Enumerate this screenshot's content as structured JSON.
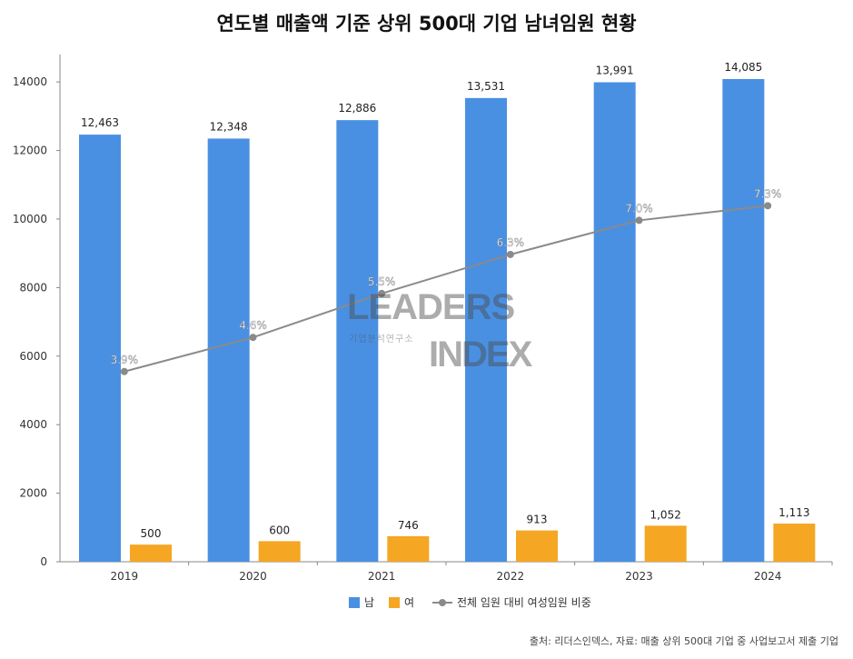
{
  "chart_data": {
    "type": "bar",
    "title": "연도별 매출액 기준 상위 500대 기업 남녀임원 현황",
    "categories": [
      "2019",
      "2020",
      "2021",
      "2022",
      "2023",
      "2024"
    ],
    "series": [
      {
        "name": "남",
        "kind": "bar",
        "color": "#4a90e2",
        "values": [
          12463,
          12348,
          12886,
          13531,
          13991,
          14085
        ],
        "labels": [
          "12,463",
          "12,348",
          "12,886",
          "13,531",
          "13,991",
          "14,085"
        ]
      },
      {
        "name": "여",
        "kind": "bar",
        "color": "#f5a623",
        "values": [
          500,
          600,
          746,
          913,
          1052,
          1113
        ],
        "labels": [
          "500",
          "600",
          "746",
          "913",
          "1,052",
          "1,113"
        ]
      },
      {
        "name": "전체 임원 대비 여성임원 비중",
        "kind": "line",
        "color": "#8a8a8a",
        "values": [
          3.9,
          4.6,
          5.5,
          6.3,
          7.0,
          7.3
        ],
        "labels": [
          "3.9%",
          "4.6%",
          "5.5%",
          "6.3%",
          "7.0%",
          "7.3%"
        ]
      }
    ],
    "yticks": [
      "0",
      "2000",
      "4000",
      "6000",
      "8000",
      "10000",
      "12000",
      "14000"
    ],
    "ylim": [
      0,
      14800
    ],
    "line_ylim": [
      0,
      10.4
    ],
    "grid": false,
    "legend_position": "bottom",
    "source": "출처: 리더스인덱스, 자료: 매출 상위 500대 기업 중 사업보고서 제출 기업"
  },
  "watermark": {
    "line1": "LEADERS",
    "line2": "INDEX",
    "sub": "기업분석연구소"
  }
}
